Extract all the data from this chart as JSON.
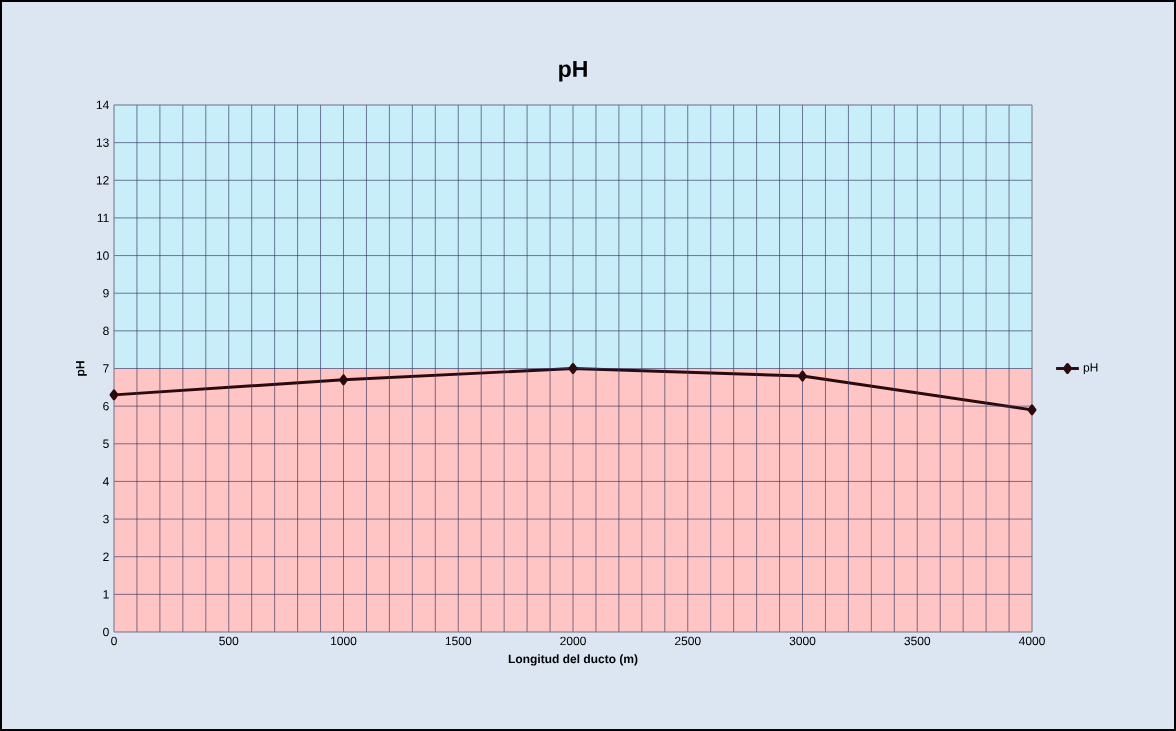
{
  "chart_data": {
    "type": "line",
    "title": "pH",
    "xlabel": "Longitud del ducto (m)",
    "ylabel": "pH",
    "x": [
      0,
      1000,
      2000,
      3000,
      4000
    ],
    "series": [
      {
        "name": "pH",
        "color": "#2b0a0e",
        "values": [
          6.3,
          6.7,
          7.0,
          6.8,
          5.9
        ]
      }
    ],
    "xlim": [
      0,
      4000
    ],
    "ylim": [
      0,
      14
    ],
    "xticks": [
      0,
      {
        "value": 100,
        "label": null
      },
      {
        "value": 200,
        "label": null
      },
      {
        "value": 300,
        "label": null
      },
      {
        "value": 400,
        "label": null
      },
      500,
      {
        "value": 600,
        "label": null
      },
      {
        "value": 700,
        "label": null
      },
      {
        "value": 800,
        "label": null
      },
      {
        "value": 900,
        "label": null
      },
      1000,
      {
        "value": 1100,
        "label": null
      },
      {
        "value": 1200,
        "label": null
      },
      {
        "value": 1300,
        "label": null
      },
      {
        "value": 1400,
        "label": null
      },
      1500,
      {
        "value": 1600,
        "label": null
      },
      {
        "value": 1700,
        "label": null
      },
      {
        "value": 1800,
        "label": null
      },
      {
        "value": 1900,
        "label": null
      },
      2000,
      {
        "value": 2100,
        "label": null
      },
      {
        "value": 2200,
        "label": null
      },
      {
        "value": 2300,
        "label": null
      },
      {
        "value": 2400,
        "label": null
      },
      2500,
      {
        "value": 2600,
        "label": null
      },
      {
        "value": 2700,
        "label": null
      },
      {
        "value": 2800,
        "label": null
      },
      {
        "value": 2900,
        "label": null
      },
      3000,
      {
        "value": 3100,
        "label": null
      },
      {
        "value": 3200,
        "label": null
      },
      {
        "value": 3300,
        "label": null
      },
      {
        "value": 3400,
        "label": null
      },
      3500,
      {
        "value": 3600,
        "label": null
      },
      {
        "value": 3700,
        "label": null
      },
      {
        "value": 3800,
        "label": null
      },
      {
        "value": 3900,
        "label": null
      },
      4000
    ],
    "yticks": [
      0,
      1,
      2,
      3,
      4,
      5,
      6,
      7,
      8,
      9,
      10,
      11,
      12,
      13,
      14
    ],
    "bands": [
      {
        "axis": "y",
        "from": 0,
        "to": 7,
        "color": "#ffc4c4"
      },
      {
        "axis": "y",
        "from": 7,
        "to": 14,
        "color": "#c8eefa"
      }
    ],
    "grid": true,
    "legend": "right",
    "marker": "diamond",
    "line_style": "solid"
  }
}
